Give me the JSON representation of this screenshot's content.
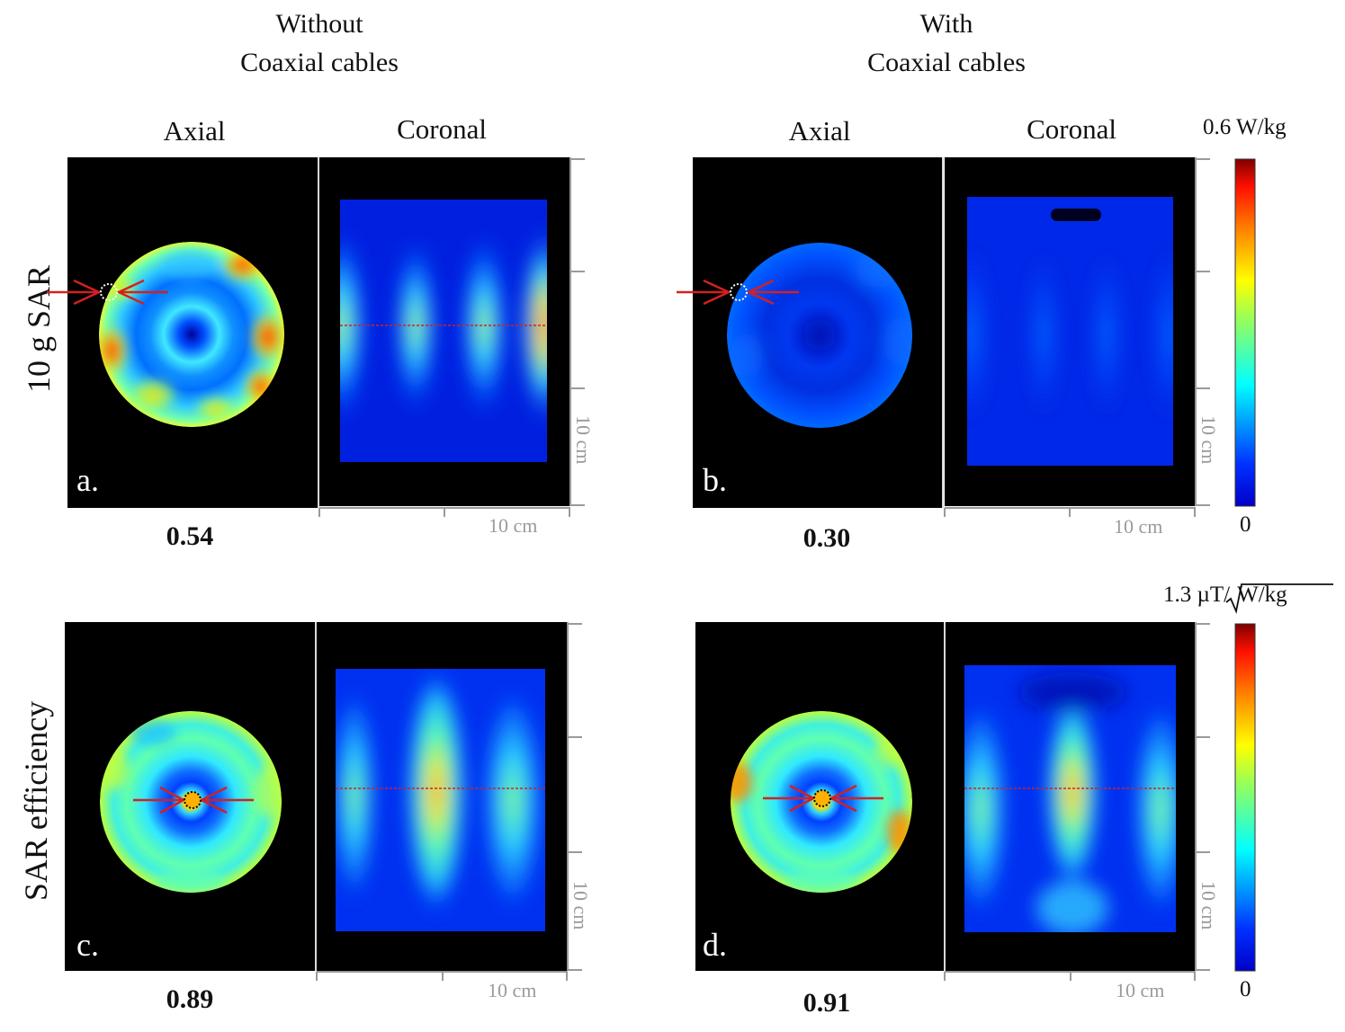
{
  "columns": {
    "without": {
      "line1": "Without",
      "line2": "Coaxial cables"
    },
    "with": {
      "line1": "With",
      "line2": "Coaxial cables"
    }
  },
  "views": {
    "axial": "Axial",
    "coronal": "Coronal"
  },
  "rows": {
    "sar": "10 g SAR",
    "efficiency": "SAR efficiency"
  },
  "panels": {
    "a": {
      "letter": "a.",
      "value": "0.54"
    },
    "b": {
      "letter": "b.",
      "value": "0.30"
    },
    "c": {
      "letter": "c.",
      "value": "0.89"
    },
    "d": {
      "letter": "d.",
      "value": "0.91"
    }
  },
  "scale_bar": "10 cm",
  "colorbars": {
    "sar": {
      "max": "0.6 W/kg",
      "min": "0"
    },
    "efficiency": {
      "max_prefix": "1.3 µT/",
      "max_root": "W/kg",
      "min": "0"
    }
  },
  "colormap": [
    "#00008f",
    "#0000ff",
    "#00ffff",
    "#ffff00",
    "#ff8000",
    "#ff0000",
    "#800000"
  ],
  "annotation_color": "#d42020"
}
